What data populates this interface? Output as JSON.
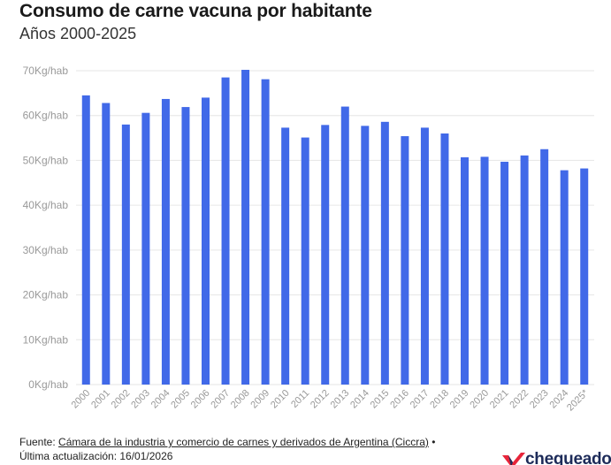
{
  "title": "Consumo de carne vacuna por habitante",
  "subtitle": "Años 2000-2025",
  "footer": {
    "source_prefix": "Fuente: ",
    "source_link": "Cámara de la industria y comercio de carnes y derivados de Argentina (Ciccra)",
    "source_suffix": " •",
    "updated": "Última actualización: 16/01/2026"
  },
  "logo": {
    "text": "chequeado",
    "icon": "check-mark-icon"
  },
  "colors": {
    "bar": "#4169e8",
    "grid": "#e6e6e6",
    "axis_text": "#999999"
  },
  "chart_data": {
    "type": "bar",
    "title": "Consumo de carne vacuna por habitante",
    "subtitle": "Años 2000-2025",
    "categories": [
      "2000",
      "2001",
      "2002",
      "2003",
      "2004",
      "2005",
      "2006",
      "2007",
      "2008",
      "2009",
      "2010",
      "2011",
      "2012",
      "2013",
      "2014",
      "2015",
      "2016",
      "2017",
      "2018",
      "2019",
      "2020",
      "2021",
      "2022",
      "2023",
      "2024",
      "2025*"
    ],
    "series": [
      {
        "values": [
          64.5,
          62.8,
          58.0,
          60.6,
          63.7,
          61.9,
          64.0,
          68.5,
          70.2,
          68.1,
          57.3,
          55.1,
          57.9,
          62.0,
          57.7,
          58.6,
          55.4,
          57.3,
          56.0,
          50.7,
          50.8,
          49.7,
          51.1,
          52.5,
          47.8,
          48.2
        ]
      }
    ],
    "ylim": [
      0,
      70
    ],
    "yticks": [
      "0Kg/hab",
      "10Kg/hab",
      "20Kg/hab",
      "30Kg/hab",
      "40Kg/hab",
      "50Kg/hab",
      "60Kg/hab",
      "70Kg/hab"
    ],
    "xlabel": "",
    "ylabel": "",
    "grid": true,
    "legend": "none"
  }
}
